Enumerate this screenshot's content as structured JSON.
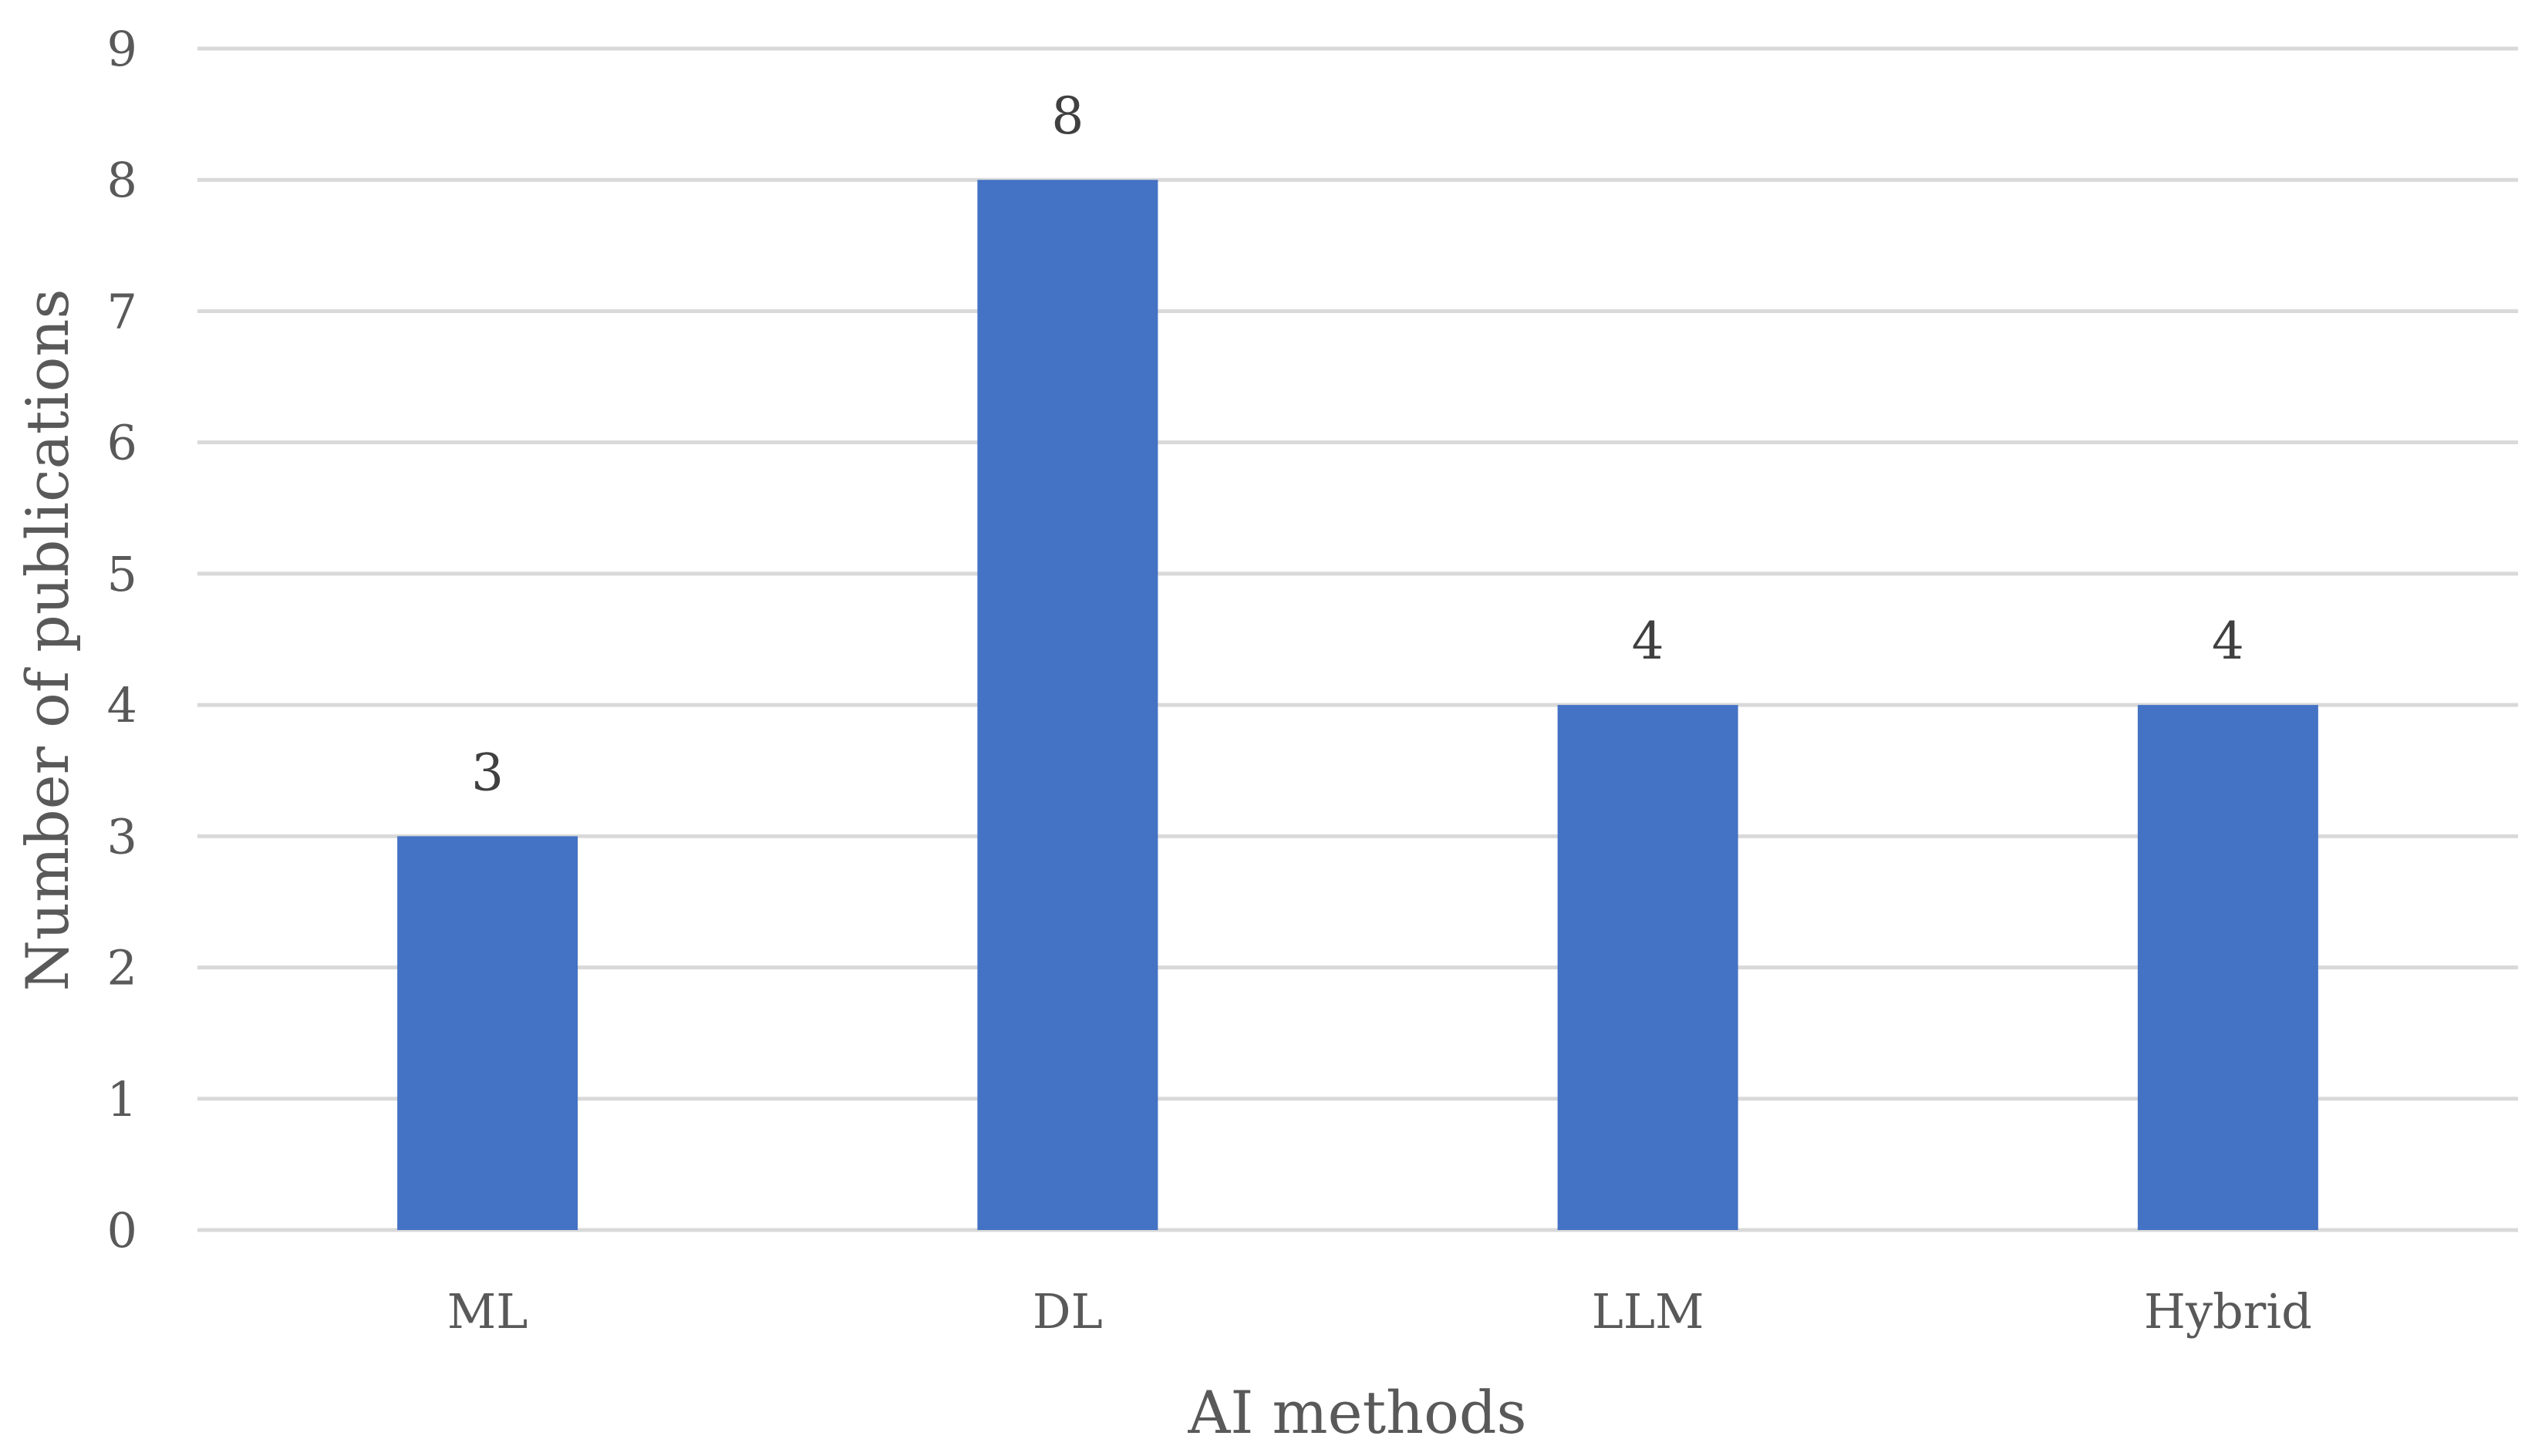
{
  "chart_data": {
    "type": "bar",
    "title": "",
    "xlabel": "AI methods",
    "ylabel": "Number of publications",
    "categories": [
      "ML",
      "DL",
      "LLM",
      "Hybrid"
    ],
    "values": [
      3,
      8,
      4,
      4
    ],
    "data_labels": [
      "3",
      "8",
      "4",
      "4"
    ],
    "y_ticks": [
      "0",
      "1",
      "2",
      "3",
      "4",
      "5",
      "6",
      "7",
      "8",
      "9"
    ],
    "ylim": [
      0,
      9
    ],
    "grid": true,
    "legend": false,
    "colors": {
      "bar": "#4472C4",
      "grid": "#D9D9D9"
    }
  }
}
